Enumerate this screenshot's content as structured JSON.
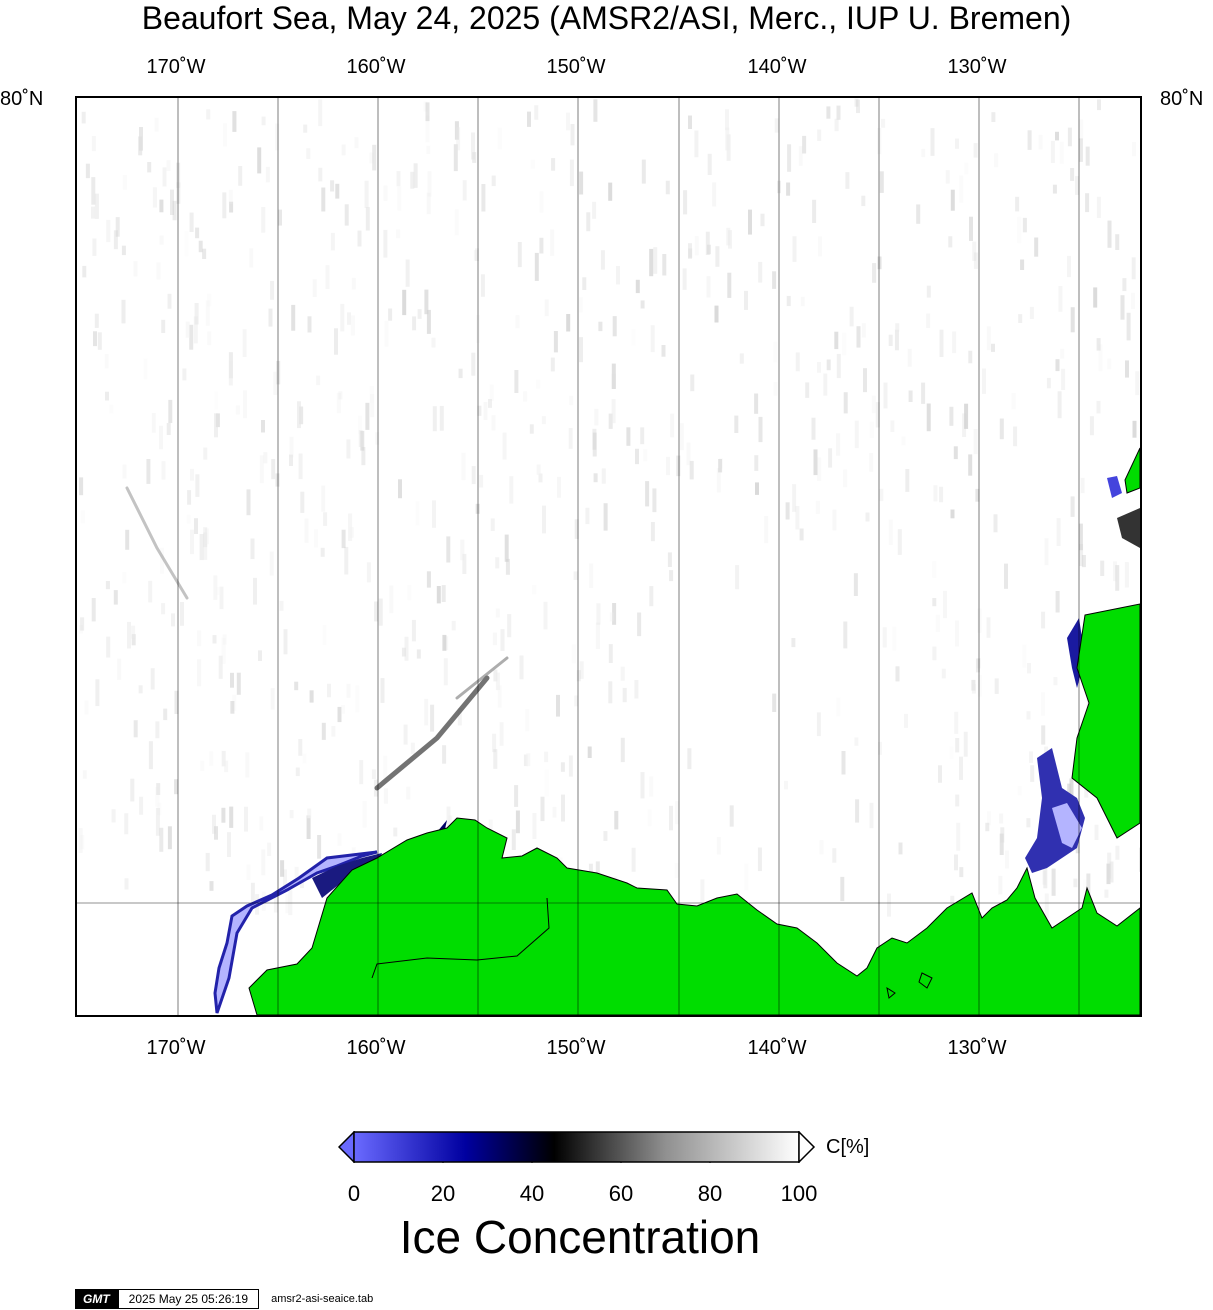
{
  "title": "Beaufort Sea, May 24, 2025 (AMSR2/ASI, Merc., IUP U. Bremen)",
  "map": {
    "lon_labels": [
      "170˚W",
      "160˚W",
      "150˚W",
      "140˚W",
      "130˚W"
    ],
    "lat_label": "80˚N",
    "colors": {
      "land": "#00dd00",
      "water": "#ffffff",
      "low_ice": "#b4b4ff",
      "coast": "#000000"
    }
  },
  "colorbar": {
    "label": "C[%]",
    "ticks": [
      "0",
      "20",
      "40",
      "60",
      "80",
      "100"
    ],
    "title": "Ice Concentration",
    "stops": [
      "#6a6aff",
      "#0000a0",
      "#000000",
      "#909090",
      "#ffffff"
    ]
  },
  "footer": {
    "logo": "GMT",
    "timestamp": "2025 May 25 05:26:19",
    "file": "amsr2-asi-seaice.tab"
  }
}
